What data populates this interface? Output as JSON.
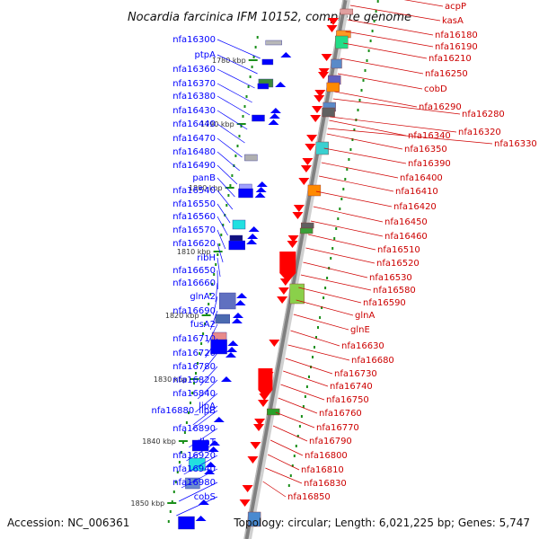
{
  "title": "Nocardia farcinica IFM 10152, complete genome",
  "footer": {
    "accession": "Accession: NC_006361",
    "summary": "Topology: circular; Length: 6,021,225 bp; Genes: 5,747"
  },
  "colors": {
    "minus_strand": "#0000ff",
    "plus_strand": "#ff0000",
    "backbone": "#808080",
    "tick": "#1a8f1a"
  },
  "kbp_ticks": [
    "1780 kbp",
    "1790 kbp",
    "1800 kbp",
    "1810 kbp",
    "1820 kbp",
    "1830 kbp",
    "1840 kbp",
    "1850 kbp"
  ],
  "left_labels": [
    "nfa16300",
    "ptpA",
    "nfa16360",
    "nfa16370",
    "nfa16380",
    "nfa16430",
    "nfa16440",
    "nfa16470",
    "nfa16480",
    "nfa16490",
    "panB",
    "nfa16540",
    "nfa16550",
    "nfa16560",
    "nfa16570",
    "nfa16620",
    "ribH",
    "nfa16650",
    "nfa16660",
    "glnA2",
    "nfa16690",
    "fusA2",
    "nfa16710",
    "nfa16720",
    "nfa16780",
    "nfa16820",
    "nfa16840",
    "lipA",
    "nfa16880_lipB",
    "nfa16890",
    "dlaT",
    "nfa16920",
    "nfa16940",
    "nfa16980",
    "cobS"
  ],
  "right_labels": [
    "acpP",
    "kasA",
    "nfa16180",
    "nfa16190",
    "nfa16210",
    "nfa16250",
    "cobD",
    "nfa16290",
    "nfa16280",
    "nfa16320",
    "nfa16340",
    "nfa16330",
    "nfa16350",
    "nfa16390",
    "nfa16400",
    "nfa16410",
    "nfa16420",
    "nfa16450",
    "nfa16460",
    "nfa16510",
    "nfa16520",
    "nfa16530",
    "nfa16580",
    "nfa16590",
    "glnA",
    "glnE",
    "nfa16630",
    "nfa16680",
    "nfa16730",
    "nfa16740",
    "nfa16750",
    "nfa16760",
    "nfa16770",
    "nfa16790",
    "nfa16800",
    "nfa16810",
    "nfa16830",
    "nfa16850"
  ]
}
